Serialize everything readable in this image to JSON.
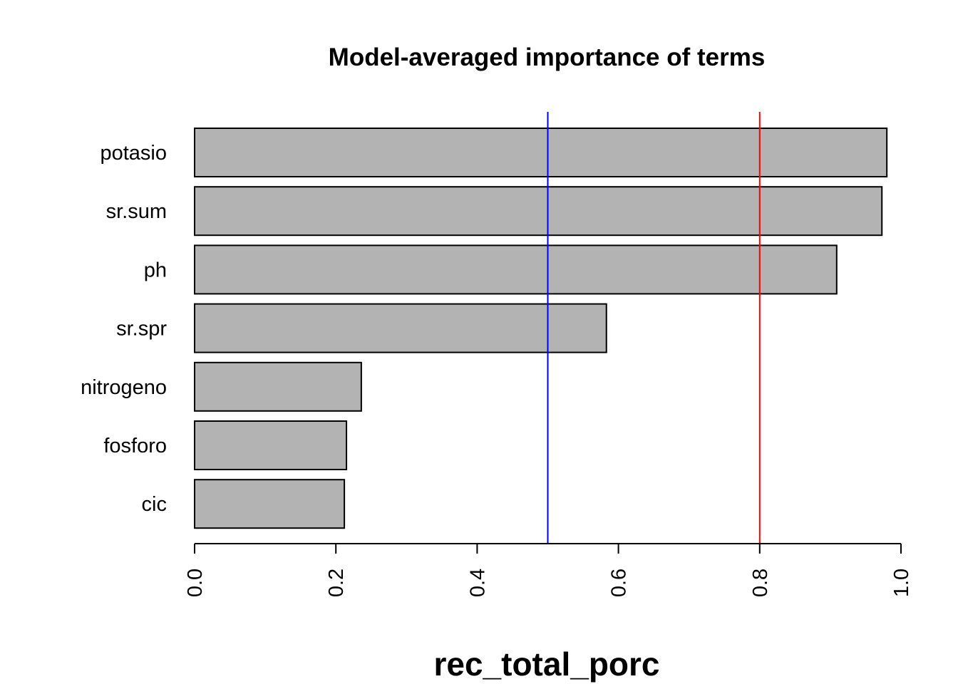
{
  "chart_data": {
    "type": "bar",
    "orientation": "horizontal",
    "title": "Model-averaged importance of terms",
    "xlabel": "rec_total_porc",
    "ylabel": "",
    "categories": [
      "potasio",
      "sr.sum",
      "ph",
      "sr.spr",
      "nitrogeno",
      "fosforo",
      "cic"
    ],
    "values": [
      0.98,
      0.973,
      0.909,
      0.583,
      0.236,
      0.215,
      0.212
    ],
    "xlim": [
      0,
      1
    ],
    "xticks": [
      "0.0",
      "0.2",
      "0.4",
      "0.6",
      "0.8",
      "1.0"
    ],
    "tick_label_rotation": "vertical",
    "bar_fill": "#b3b3b3",
    "bar_stroke": "#000000",
    "reference_lines": [
      {
        "value": 0.5,
        "color": "#0000ff"
      },
      {
        "value": 0.8,
        "color": "#ff0000"
      }
    ],
    "grid": false,
    "legend": "none"
  }
}
